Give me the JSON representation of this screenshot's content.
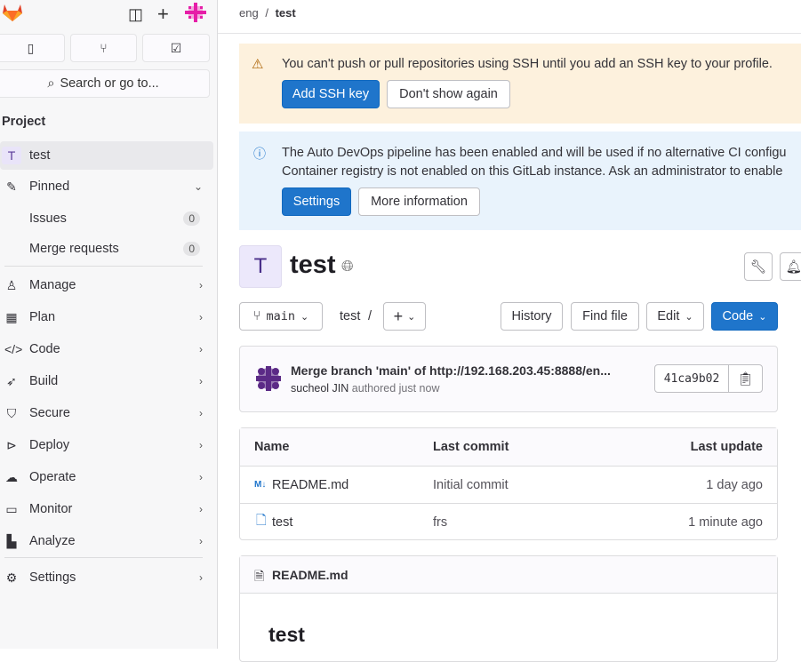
{
  "sidebar": {
    "search_placeholder": "Search or go to...",
    "section_title": "Project",
    "project": {
      "avatar": "T",
      "name": "test"
    },
    "pinned": {
      "label": "Pinned",
      "items": [
        {
          "label": "Issues",
          "count": "0"
        },
        {
          "label": "Merge requests",
          "count": "0"
        }
      ]
    },
    "items": [
      {
        "label": "Manage",
        "icon": "users-icon"
      },
      {
        "label": "Plan",
        "icon": "calendar-icon"
      },
      {
        "label": "Code",
        "icon": "code-icon"
      },
      {
        "label": "Build",
        "icon": "rocket-icon"
      },
      {
        "label": "Secure",
        "icon": "shield-icon"
      },
      {
        "label": "Deploy",
        "icon": "deploy-icon"
      },
      {
        "label": "Operate",
        "icon": "cloud-icon"
      },
      {
        "label": "Monitor",
        "icon": "monitor-icon"
      },
      {
        "label": "Analyze",
        "icon": "chart-icon"
      }
    ],
    "settings": "Settings"
  },
  "breadcrumb": {
    "group": "eng",
    "sep": "/",
    "project": "test"
  },
  "ssh_alert": {
    "message": "You can't push or pull repositories using SSH until you add an SSH key to your profile.",
    "primary": "Add SSH key",
    "secondary": "Don't show again",
    "bg": "#fdf1dd"
  },
  "devops_alert": {
    "line1": "The Auto DevOps pipeline has been enabled and will be used if no alternative CI configu",
    "line2": "Container registry is not enabled on this GitLab instance. Ask an administrator to enable",
    "primary": "Settings",
    "secondary": "More information",
    "bg": "#e9f3fc"
  },
  "project": {
    "avatar": "T",
    "title": "test"
  },
  "toolbar": {
    "branch": "main",
    "path": "test",
    "sep": "/",
    "history": "History",
    "find_file": "Find file",
    "edit": "Edit",
    "code": "Code"
  },
  "commit": {
    "title": "Merge branch 'main' of http://192.168.203.45:8888/en...",
    "author": "sucheol JIN",
    "meta": "authored just now",
    "sha": "41ca9b02"
  },
  "files": {
    "headers": [
      "Name",
      "Last commit",
      "Last update"
    ],
    "rows": [
      {
        "name": "README.md",
        "commit": "Initial commit",
        "updated": "1 day ago",
        "icon": "markdown-icon"
      },
      {
        "name": "test",
        "commit": "frs",
        "updated": "1 minute ago",
        "icon": "file-icon"
      }
    ]
  },
  "readme": {
    "filename": "README.md",
    "heading": "test"
  }
}
